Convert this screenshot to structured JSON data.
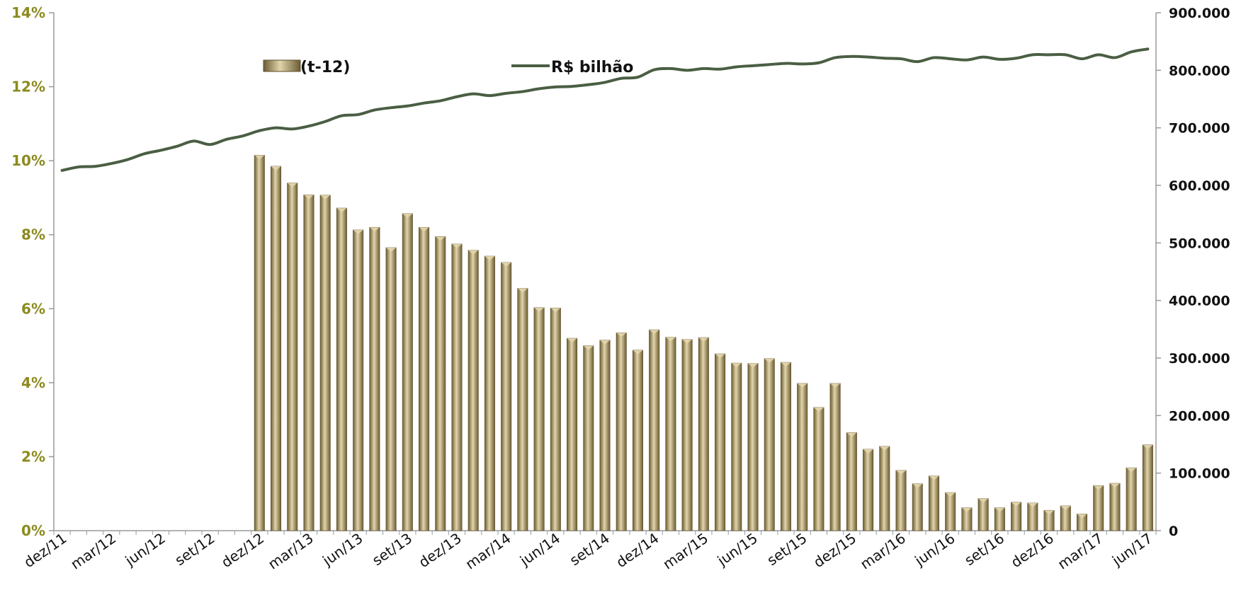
{
  "chart_data": {
    "type": "bar+line",
    "colors": {
      "bar": "#A08C5B",
      "bar_light": "#E4D7AE",
      "bar_dark": "#5C4E2A",
      "line": "#4A5E43",
      "left_tick": "#8C8A1E",
      "axis": "#9A9A9A"
    },
    "legend": {
      "placement": "top-center",
      "bar_label": "(t-12)",
      "line_label": "R$ bilhão"
    },
    "y_left": {
      "min": 0,
      "max": 14,
      "ticks": [
        "0%",
        "2%",
        "4%",
        "6%",
        "8%",
        "10%",
        "12%",
        "14%"
      ]
    },
    "y_right": {
      "min": 0,
      "max": 900000,
      "ticks": [
        "0",
        "100.000",
        "200.000",
        "300.000",
        "400.000",
        "500.000",
        "600.000",
        "700.000",
        "800.000",
        "900.000"
      ]
    },
    "x_tick_labels": [
      {
        "label": "dez/11",
        "index": 0
      },
      {
        "label": "mar/12",
        "index": 3
      },
      {
        "label": "jun/12",
        "index": 6
      },
      {
        "label": "set/12",
        "index": 9
      },
      {
        "label": "dez/12",
        "index": 12
      },
      {
        "label": "mar/13",
        "index": 15
      },
      {
        "label": "jun/13",
        "index": 18
      },
      {
        "label": "set/13",
        "index": 21
      },
      {
        "label": "dez/13",
        "index": 24
      },
      {
        "label": "mar/14",
        "index": 27
      },
      {
        "label": "jun/14",
        "index": 30
      },
      {
        "label": "set/14",
        "index": 33
      },
      {
        "label": "dez/14",
        "index": 36
      },
      {
        "label": "mar/15",
        "index": 39
      },
      {
        "label": "jun/15",
        "index": 42
      },
      {
        "label": "set/15",
        "index": 45
      },
      {
        "label": "dez/15",
        "index": 48
      },
      {
        "label": "mar/16",
        "index": 51
      },
      {
        "label": "jun/16",
        "index": 54
      },
      {
        "label": "set/16",
        "index": 57
      },
      {
        "label": "dez/16",
        "index": 60
      },
      {
        "label": "mar/17",
        "index": 63
      },
      {
        "label": "jun/17",
        "index": 66
      }
    ],
    "categories": [
      "dez/11",
      "jan/12",
      "fev/12",
      "mar/12",
      "abr/12",
      "mai/12",
      "jun/12",
      "jul/12",
      "ago/12",
      "set/12",
      "out/12",
      "nov/12",
      "dez/12",
      "jan/13",
      "fev/13",
      "mar/13",
      "abr/13",
      "mai/13",
      "jun/13",
      "jul/13",
      "ago/13",
      "set/13",
      "out/13",
      "nov/13",
      "dez/13",
      "jan/14",
      "fev/14",
      "mar/14",
      "abr/14",
      "mai/14",
      "jun/14",
      "jul/14",
      "ago/14",
      "set/14",
      "out/14",
      "nov/14",
      "dez/14",
      "jan/15",
      "fev/15",
      "mar/15",
      "abr/15",
      "mai/15",
      "jun/15",
      "jul/15",
      "ago/15",
      "set/15",
      "out/15",
      "nov/15",
      "dez/15",
      "jan/16",
      "fev/16",
      "mar/16",
      "abr/16",
      "mai/16",
      "jun/16",
      "jul/16",
      "ago/16",
      "set/16",
      "out/16",
      "nov/16",
      "dez/16",
      "jan/17",
      "fev/17",
      "mar/17",
      "abr/17",
      "mai/17",
      "jun/17"
    ],
    "series": [
      {
        "name": "(t-12)",
        "type": "bar",
        "axis": "left",
        "values": [
          null,
          null,
          null,
          null,
          null,
          null,
          null,
          null,
          null,
          null,
          null,
          null,
          10.15,
          9.85,
          9.4,
          9.08,
          9.07,
          8.72,
          8.13,
          8.2,
          7.65,
          8.57,
          8.2,
          7.95,
          7.75,
          7.58,
          7.42,
          7.25,
          6.55,
          6.03,
          6.02,
          5.2,
          5.0,
          5.15,
          5.35,
          4.88,
          5.43,
          5.23,
          5.17,
          5.22,
          4.78,
          4.53,
          4.52,
          4.65,
          4.55,
          3.98,
          3.33,
          3.98,
          2.65,
          2.2,
          2.28,
          1.63,
          1.27,
          1.48,
          1.03,
          0.62,
          0.87,
          0.62,
          0.77,
          0.75,
          0.55,
          0.67,
          0.45,
          1.22,
          1.28,
          1.7,
          2.32
        ]
      },
      {
        "name": "R$ bilhão",
        "type": "line",
        "axis": "right",
        "values": [
          626000,
          632000,
          633000,
          638000,
          645000,
          655000,
          661000,
          668000,
          677000,
          671000,
          680000,
          686000,
          695000,
          700000,
          698000,
          703000,
          711000,
          721000,
          723000,
          731000,
          735000,
          738000,
          743000,
          747000,
          754000,
          759000,
          756000,
          760000,
          763000,
          768000,
          771000,
          772000,
          775000,
          779000,
          786000,
          788000,
          801000,
          803000,
          800000,
          803000,
          802000,
          806000,
          808000,
          810000,
          812000,
          811000,
          813000,
          822000,
          824000,
          823000,
          821000,
          820000,
          815000,
          822000,
          820000,
          818000,
          823000,
          819000,
          821000,
          827000,
          827000,
          827000,
          820000,
          827000,
          822000,
          832000,
          837000
        ]
      }
    ]
  }
}
